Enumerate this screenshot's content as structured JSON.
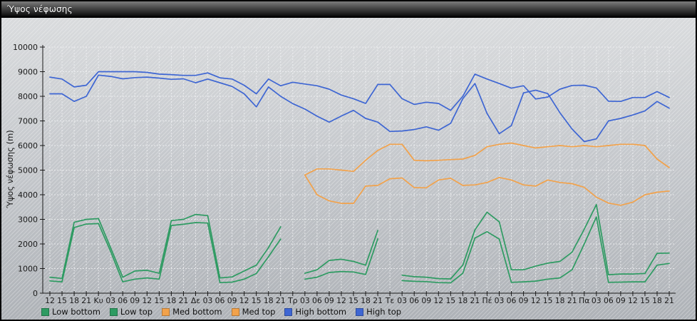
{
  "window": {
    "title": "Ύψος νέφωσης"
  },
  "chart_data": {
    "type": "line",
    "title": "Ύψος νέφωσης",
    "xlabel": "",
    "ylabel": "Ύψος νέφωσης (m)",
    "ylim": [
      0,
      10000
    ],
    "ytick_step": 1000,
    "ytick_labels": [
      "0",
      "1000",
      "2000",
      "3000",
      "4000",
      "5000",
      "6000",
      "7000",
      "8000",
      "9000",
      "10000"
    ],
    "grid": true,
    "legend_position": "bottom",
    "categories": [
      "12",
      "15",
      "18",
      "21",
      "Κυ",
      "03",
      "06",
      "09",
      "12",
      "15",
      "18",
      "21",
      "Δε",
      "03",
      "06",
      "09",
      "12",
      "15",
      "18",
      "21",
      "Τρ",
      "03",
      "06",
      "09",
      "12",
      "15",
      "18",
      "21",
      "Τε",
      "03",
      "06",
      "09",
      "12",
      "15",
      "18",
      "21",
      "Πέ",
      "03",
      "06",
      "09",
      "12",
      "15",
      "18",
      "21",
      "Πα",
      "03",
      "06",
      "09",
      "12",
      "15",
      "18",
      "21"
    ],
    "series": [
      {
        "name": "Low bottom",
        "color": "#2E9B62",
        "values": [
          500,
          460,
          2670,
          2810,
          2830,
          1700,
          460,
          570,
          620,
          570,
          2750,
          2800,
          2870,
          2850,
          430,
          450,
          570,
          800,
          1480,
          2200,
          null,
          570,
          650,
          840,
          880,
          860,
          760,
          2210,
          null,
          510,
          480,
          470,
          430,
          420,
          810,
          2240,
          2500,
          2200,
          440,
          460,
          490,
          570,
          620,
          950,
          2000,
          3100,
          440,
          450,
          460,
          460,
          1140,
          1210
        ]
      },
      {
        "name": "Low top",
        "color": "#2E9B62",
        "values": [
          650,
          600,
          2880,
          3000,
          3030,
          1850,
          650,
          900,
          930,
          810,
          2950,
          3000,
          3200,
          3150,
          620,
          660,
          900,
          1140,
          1850,
          2700,
          null,
          810,
          950,
          1330,
          1380,
          1290,
          1140,
          2550,
          null,
          730,
          670,
          650,
          590,
          580,
          1140,
          2570,
          3290,
          2900,
          950,
          950,
          1100,
          1220,
          1290,
          1670,
          2600,
          3600,
          750,
          780,
          780,
          800,
          1620,
          1630
        ]
      },
      {
        "name": "Med bottom",
        "color": "#F2A24B",
        "values": [
          null,
          null,
          null,
          null,
          null,
          null,
          null,
          null,
          null,
          null,
          null,
          null,
          null,
          null,
          null,
          null,
          null,
          null,
          null,
          null,
          null,
          4800,
          4000,
          3750,
          3650,
          3650,
          4350,
          4380,
          4650,
          4680,
          4290,
          4280,
          4600,
          4670,
          4380,
          4400,
          4500,
          4700,
          4600,
          4400,
          4350,
          4600,
          4500,
          4450,
          4300,
          3900,
          3660,
          3570,
          3700,
          4000,
          4100,
          4150
        ]
      },
      {
        "name": "Med top",
        "color": "#F2A24B",
        "values": [
          null,
          null,
          null,
          null,
          null,
          null,
          null,
          null,
          null,
          null,
          null,
          null,
          null,
          null,
          null,
          null,
          null,
          null,
          null,
          null,
          null,
          4800,
          5050,
          5050,
          5000,
          4950,
          5400,
          5800,
          6050,
          6050,
          5400,
          5380,
          5400,
          5430,
          5450,
          5600,
          5950,
          6050,
          6100,
          6000,
          5900,
          5950,
          6000,
          5950,
          6000,
          5950,
          6000,
          6050,
          6050,
          6000,
          5450,
          5100
        ]
      },
      {
        "name": "High bottom",
        "color": "#3E66D3",
        "values": [
          8100,
          8100,
          7790,
          8000,
          8860,
          8810,
          8710,
          8760,
          8780,
          8740,
          8690,
          8710,
          8550,
          8700,
          8550,
          8400,
          8100,
          7570,
          8380,
          8000,
          7700,
          7480,
          7190,
          6950,
          7200,
          7430,
          7100,
          6950,
          6570,
          6590,
          6650,
          6760,
          6620,
          6900,
          7900,
          8520,
          7300,
          6480,
          6810,
          8140,
          8250,
          8110,
          7330,
          6670,
          6160,
          6270,
          7000,
          7100,
          7240,
          7410,
          7790,
          7520
        ]
      },
      {
        "name": "High top",
        "color": "#3E66D3",
        "values": [
          8780,
          8700,
          8380,
          8450,
          9000,
          9000,
          9000,
          9000,
          8970,
          8900,
          8880,
          8850,
          8850,
          8950,
          8750,
          8700,
          8450,
          8100,
          8700,
          8430,
          8570,
          8500,
          8430,
          8290,
          8050,
          7900,
          7710,
          8480,
          8480,
          7900,
          7670,
          7760,
          7710,
          7430,
          8000,
          8900,
          8700,
          8520,
          8330,
          8430,
          7890,
          7970,
          8290,
          8440,
          8450,
          8340,
          7800,
          7790,
          7950,
          7950,
          8190,
          7950
        ]
      }
    ]
  }
}
